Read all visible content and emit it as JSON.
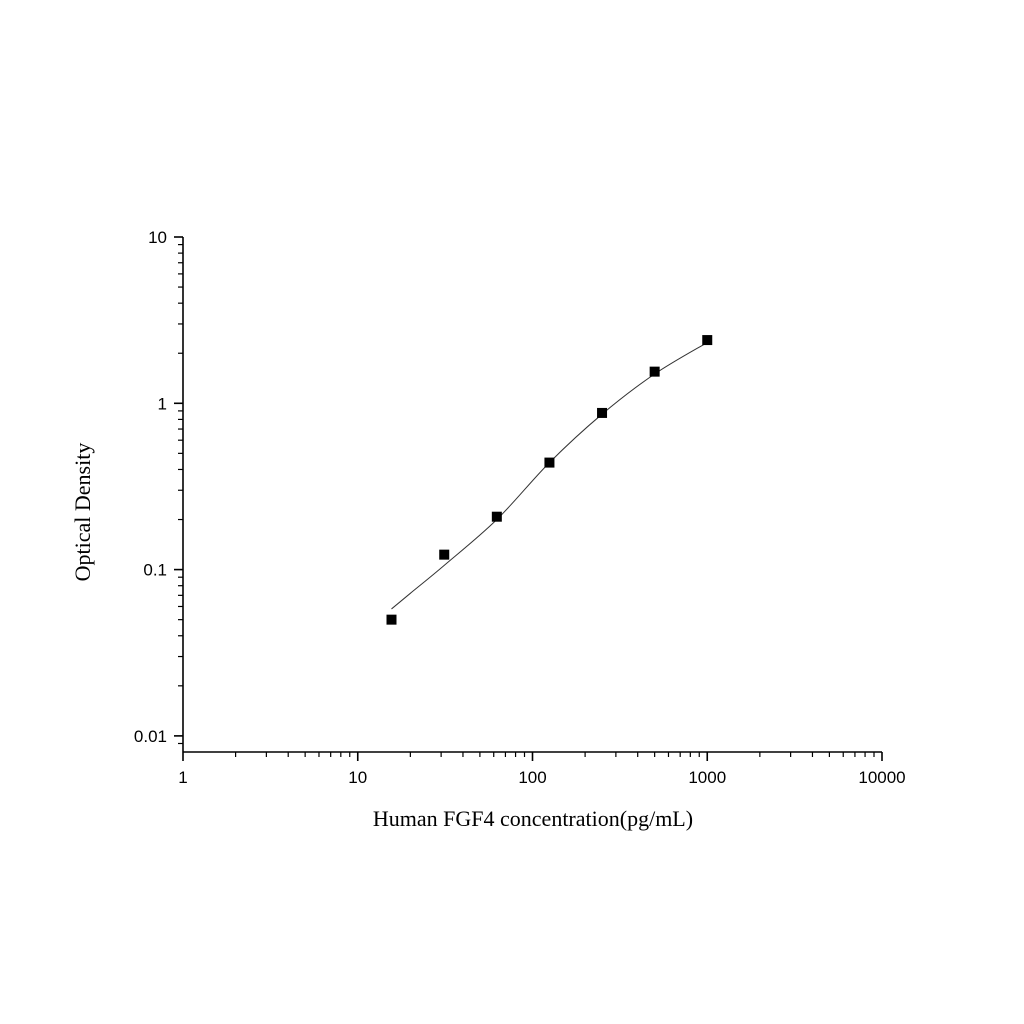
{
  "chart_data": {
    "type": "scatter",
    "xlabel": "Human FGF4 concentration(pg/mL)",
    "ylabel": "Optical Density",
    "xscale": "log",
    "yscale": "log",
    "xlim": [
      1,
      10000
    ],
    "ylim": [
      0.008,
      10
    ],
    "x_ticks": [
      1,
      10,
      100,
      1000,
      10000
    ],
    "x_tick_labels": [
      "1",
      "10",
      "100",
      "1000",
      "10000"
    ],
    "y_ticks": [
      0.01,
      0.1,
      1,
      10
    ],
    "y_tick_labels": [
      "0.01",
      "0.1",
      "1",
      "10"
    ],
    "grid": false,
    "series": [
      {
        "x": [
          15.6,
          31.25,
          62.5,
          125,
          250,
          500,
          1000
        ],
        "y": [
          0.05,
          0.123,
          0.208,
          0.44,
          0.875,
          1.55,
          2.4
        ],
        "marker": "square",
        "color": "#000000"
      }
    ],
    "fit_curve": {
      "type": "smooth",
      "color": "#333333",
      "x": [
        15.6,
        20,
        31.25,
        62.5,
        125,
        250,
        500,
        1000
      ],
      "y": [
        0.058,
        0.072,
        0.106,
        0.2,
        0.44,
        0.86,
        1.5,
        2.32
      ]
    }
  }
}
